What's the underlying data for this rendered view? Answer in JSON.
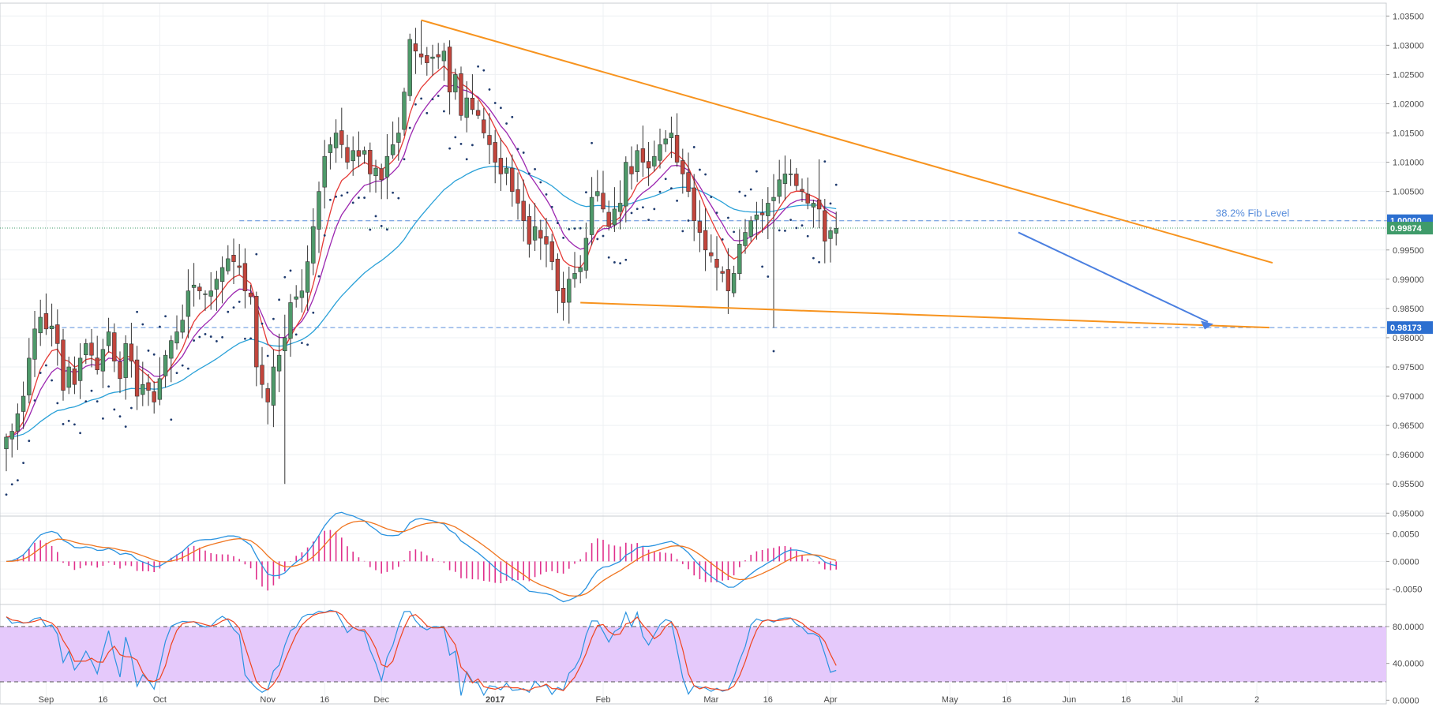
{
  "chart_data": {
    "type": "candlestick",
    "panels": [
      {
        "name": "price",
        "ylim": [
          0.9495,
          1.0372
        ],
        "yticks": [
          1.035,
          1.03,
          1.025,
          1.02,
          1.015,
          1.01,
          1.005,
          1.0,
          0.995,
          0.99,
          0.985,
          0.98,
          0.975,
          0.97,
          0.965,
          0.96,
          0.955,
          0.95
        ],
        "ytick_labels": [
          "1.03500",
          "1.03000",
          "1.02500",
          "1.02000",
          "1.01500",
          "1.01000",
          "1.00500",
          "1.00000",
          "0.99500",
          "0.99000",
          "0.98500",
          "0.98000",
          "0.97500",
          "0.97000",
          "0.96500",
          "0.96000",
          "0.95500",
          "0.95000"
        ],
        "horizontal_levels": [
          {
            "value": 1.0,
            "label": "38.2% Fib Level",
            "price_label": "1.00000",
            "color": "#5b8fdc"
          },
          {
            "value": 0.98173,
            "price_label": "0.98173",
            "color": "#5b8fdc"
          },
          {
            "value": 0.99874,
            "price_label": "0.99874",
            "color": "#3f9b6a"
          }
        ],
        "colors": {
          "up": "#4e9a6a",
          "down": "#c2453c",
          "ema_fast": "#e53935",
          "ema_mid": "#9c27b0",
          "ma_slow": "#2aa1d8",
          "sar": "#1e3a6e",
          "trendline": "#f7931e",
          "arrow": "#4a7fe0"
        }
      },
      {
        "name": "macd",
        "ylim": [
          -0.0078,
          0.0082
        ],
        "yticks": [
          0.005,
          0.0,
          -0.005
        ],
        "ytick_labels": [
          "0.0050",
          "0.0000",
          "-0.0050"
        ]
      },
      {
        "name": "stochastic",
        "ylim": [
          -4,
          104
        ],
        "yticks": [
          80,
          40,
          0
        ],
        "ytick_labels": [
          "80.0000",
          "40.0000",
          "0.0000"
        ],
        "band": [
          20,
          80
        ]
      }
    ],
    "x_labels": [
      {
        "label": "Sep",
        "index": 7
      },
      {
        "label": "16",
        "index": 17
      },
      {
        "label": "Oct",
        "index": 27
      },
      {
        "label": "Nov",
        "index": 46
      },
      {
        "label": "16",
        "index": 56
      },
      {
        "label": "Dec",
        "index": 66
      },
      {
        "label": "2017",
        "index": 86
      },
      {
        "label": "Feb",
        "index": 105
      },
      {
        "label": "Mar",
        "index": 124
      },
      {
        "label": "16",
        "index": 134
      },
      {
        "label": "Apr",
        "index": 145
      },
      {
        "label": "May",
        "index": 166
      },
      {
        "label": "16",
        "index": 176
      },
      {
        "label": "Jun",
        "index": 187
      },
      {
        "label": "16",
        "index": 197
      },
      {
        "label": "Jul",
        "index": 206
      },
      {
        "label": "2",
        "index": 220
      }
    ],
    "closes": [
      0.963,
      0.964,
      0.967,
      0.97,
      0.9765,
      0.9815,
      0.9835,
      0.9815,
      0.982,
      0.979,
      0.971,
      0.975,
      0.972,
      0.9765,
      0.979,
      0.977,
      0.9745,
      0.978,
      0.981,
      0.976,
      0.973,
      0.979,
      0.976,
      0.97,
      0.972,
      0.971,
      0.969,
      0.973,
      0.977,
      0.9795,
      0.981,
      0.983,
      0.988,
      0.989,
      0.988,
      0.9875,
      0.988,
      0.99,
      0.992,
      0.9935,
      0.993,
      0.992,
      0.988,
      0.987,
      0.975,
      0.972,
      0.969,
      0.975,
      0.977,
      0.98,
      0.986,
      0.987,
      0.988,
      0.993,
      0.999,
      1.005,
      1.011,
      1.013,
      1.015,
      1.013,
      1.01,
      1.012,
      1.011,
      1.012,
      1.008,
      1.009,
      1.007,
      1.011,
      1.013,
      1.015,
      1.022,
      1.031,
      1.029,
      1.028,
      1.027,
      1.028,
      1.028,
      1.029,
      1.022,
      1.025,
      1.018,
      1.021,
      1.019,
      1.018,
      1.015,
      1.013,
      1.01,
      1.008,
      1.009,
      1.005,
      1.003,
      1.0,
      0.996,
      0.999,
      0.997,
      0.996,
      0.993,
      0.988,
      0.986,
      0.99,
      0.991,
      0.992,
      0.997,
      1.004,
      1.005,
      1.002,
      0.999,
      1.002,
      1.003,
      1.01,
      1.008,
      1.012,
      1.01,
      1.009,
      1.011,
      1.013,
      1.014,
      1.015,
      1.01,
      1.008,
      1.005,
      1.0,
      0.998,
      0.995,
      0.994,
      0.992,
      0.991,
      0.988,
      0.991,
      0.996,
      0.998,
      1.0,
      1.001,
      1.001,
      1.003,
      1.004,
      1.007,
      1.008,
      1.008,
      1.006,
      1.005,
      1.003,
      1.003,
      1.002,
      0.9965,
      0.9983,
      0.9987
    ],
    "annotations": [
      "38.2% Fib Level"
    ]
  }
}
